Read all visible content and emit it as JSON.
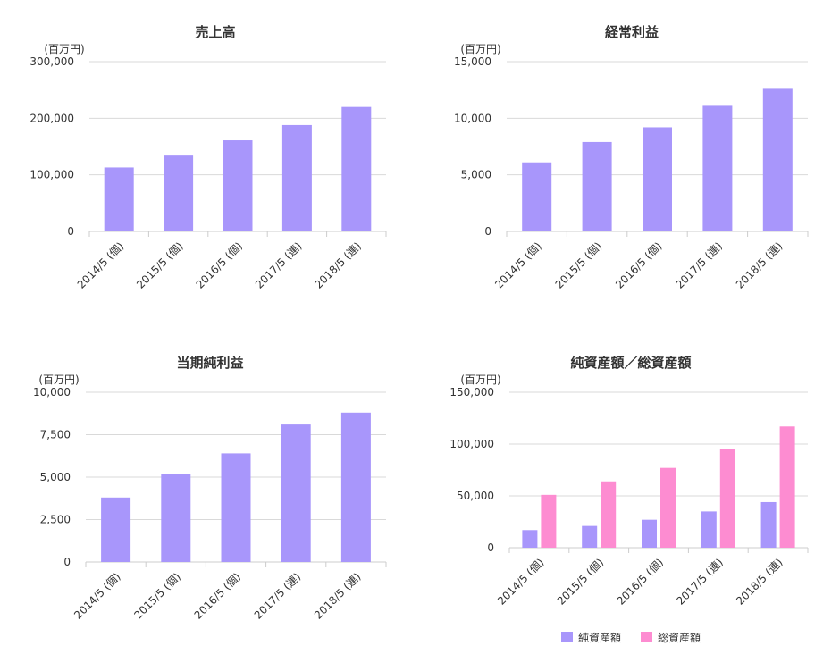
{
  "colors": {
    "net_assets": "#a896fb",
    "total_assets": "#fd8cd1",
    "grid": "#d9d9d9",
    "axis": "#cccccc",
    "text": "#333333"
  },
  "chart_data": [
    {
      "type": "bar",
      "title": "売上高",
      "unit_label": "(百万円)",
      "categories": [
        "2014/5 (個)",
        "2015/5 (個)",
        "2016/5 (個)",
        "2017/5 (連)",
        "2018/5 (連)"
      ],
      "yticks": [
        "0",
        "100,000",
        "200,000",
        "300,000"
      ],
      "ylim": [
        0,
        300000
      ],
      "series": [
        {
          "values": [
            113000,
            134000,
            161000,
            188000,
            220000
          ]
        }
      ]
    },
    {
      "type": "bar",
      "title": "経常利益",
      "unit_label": "(百万円)",
      "categories": [
        "2014/5 (個)",
        "2015/5 (個)",
        "2016/5 (個)",
        "2017/5 (連)",
        "2018/5 (連)"
      ],
      "yticks": [
        "0",
        "5,000",
        "10,000",
        "15,000"
      ],
      "ylim": [
        0,
        15000
      ],
      "series": [
        {
          "values": [
            6100,
            7900,
            9200,
            11100,
            12600
          ]
        }
      ]
    },
    {
      "type": "bar",
      "title": "当期純利益",
      "unit_label": "(百万円)",
      "categories": [
        "2014/5 (個)",
        "2015/5 (個)",
        "2016/5 (個)",
        "2017/5 (連)",
        "2018/5 (連)"
      ],
      "yticks": [
        "0",
        "2,500",
        "5,000",
        "7,500",
        "10,000"
      ],
      "ylim": [
        0,
        10000
      ],
      "series": [
        {
          "values": [
            3800,
            5200,
            6400,
            8100,
            8800
          ]
        }
      ]
    },
    {
      "type": "bar",
      "title": "純資産額／総資産額",
      "unit_label": "(百万円)",
      "categories": [
        "2014/5 (個)",
        "2015/5 (個)",
        "2016/5 (個)",
        "2017/5 (連)",
        "2018/5 (連)"
      ],
      "yticks": [
        "0",
        "50,000",
        "100,000",
        "150,000"
      ],
      "ylim": [
        0,
        150000
      ],
      "legend_position": "bottom",
      "series": [
        {
          "name": "純資産額",
          "color": "net_assets",
          "values": [
            17000,
            21000,
            27000,
            35000,
            44000
          ]
        },
        {
          "name": "総資産額",
          "color": "total_assets",
          "values": [
            51000,
            64000,
            77000,
            95000,
            117000
          ]
        }
      ]
    }
  ]
}
